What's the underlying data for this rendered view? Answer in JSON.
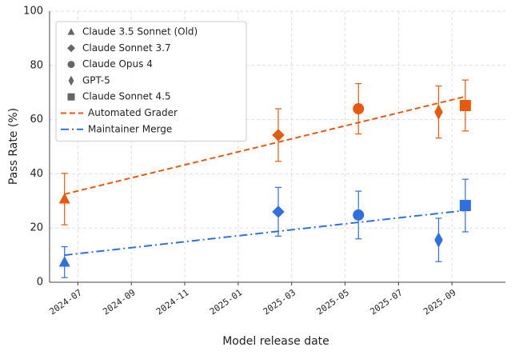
{
  "chart_data": {
    "type": "scatter",
    "y_label": "Pass Rate (%)",
    "x_label": "Model release date",
    "xlim": [
      "2024-06",
      "2025-11"
    ],
    "xticks": [
      "2024-07",
      "2024-09",
      "2024-11",
      "2025-01",
      "2025-03",
      "2025-05",
      "2025-07",
      "2025-09"
    ],
    "ylim": [
      0,
      100
    ],
    "yticks": [
      0,
      20,
      40,
      60,
      80,
      100
    ],
    "grid": true,
    "models": [
      {
        "name": "Claude 3.5 Sonnet (Old)",
        "marker": "triangle",
        "x": "2024-06"
      },
      {
        "name": "Claude Sonnet 3.7",
        "marker": "diamond",
        "x": "2025-02"
      },
      {
        "name": "Claude Opus 4",
        "marker": "circle",
        "x": "2025-05"
      },
      {
        "name": "GPT-5",
        "marker": "thin-diamond",
        "x": "2025-08"
      },
      {
        "name": "Claude Sonnet 4.5",
        "marker": "square",
        "x": "2025-09"
      }
    ],
    "series": [
      {
        "name": "Automated Grader",
        "color": "#e8590c",
        "dash": "dashed",
        "values": [
          30.7,
          54.3,
          64,
          62.8,
          65.2
        ],
        "errors": [
          9.5,
          9.7,
          9.3,
          9.6,
          9.4
        ],
        "trend": [
          32.5,
          68.5
        ]
      },
      {
        "name": "Maintainer Merge",
        "color": "#2f6fe0",
        "dash": "dashdot",
        "values": [
          7.4,
          26,
          24.8,
          15.6,
          28.3
        ],
        "errors": [
          5.7,
          9,
          8.8,
          8,
          9.7
        ],
        "trend": [
          10,
          26.5
        ]
      }
    ],
    "legend": "upper left"
  }
}
